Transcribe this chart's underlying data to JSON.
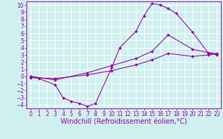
{
  "xlabel": "Windchill (Refroidissement éolien,°C)",
  "bg_color": "#cff0ee",
  "line_color": "#990099",
  "grid_color": "#ffffff",
  "spine_color": "#990099",
  "xlim": [
    -0.5,
    23.5
  ],
  "ylim": [
    -4.5,
    10.5
  ],
  "xticks": [
    0,
    1,
    2,
    3,
    4,
    5,
    6,
    7,
    8,
    9,
    10,
    11,
    12,
    13,
    14,
    15,
    16,
    17,
    18,
    19,
    20,
    21,
    22,
    23
  ],
  "yticks": [
    -4,
    -3,
    -2,
    -1,
    0,
    1,
    2,
    3,
    4,
    5,
    6,
    7,
    8,
    9,
    10
  ],
  "line1_x": [
    0,
    1,
    3,
    4,
    5,
    6,
    7,
    8,
    10,
    11,
    13,
    14,
    15,
    16,
    17,
    18,
    20,
    22,
    23
  ],
  "line1_y": [
    0.0,
    -0.3,
    -1.2,
    -3.0,
    -3.5,
    -3.8,
    -4.2,
    -3.8,
    1.2,
    4.0,
    6.3,
    8.5,
    10.2,
    10.0,
    9.5,
    8.8,
    6.2,
    3.2,
    3.0
  ],
  "line2_x": [
    0,
    3,
    7,
    10,
    13,
    15,
    17,
    20,
    22,
    23
  ],
  "line2_y": [
    0.0,
    -0.5,
    0.5,
    1.5,
    2.5,
    3.5,
    5.8,
    3.8,
    3.3,
    3.2
  ],
  "line3_x": [
    0,
    3,
    7,
    10,
    13,
    15,
    17,
    20,
    22,
    23
  ],
  "line3_y": [
    -0.2,
    -0.3,
    0.2,
    0.8,
    1.6,
    2.3,
    3.2,
    2.8,
    3.0,
    3.1
  ],
  "tick_fontsize": 5.5,
  "xlabel_fontsize": 7.0,
  "lw": 0.8,
  "ms": 2.0
}
